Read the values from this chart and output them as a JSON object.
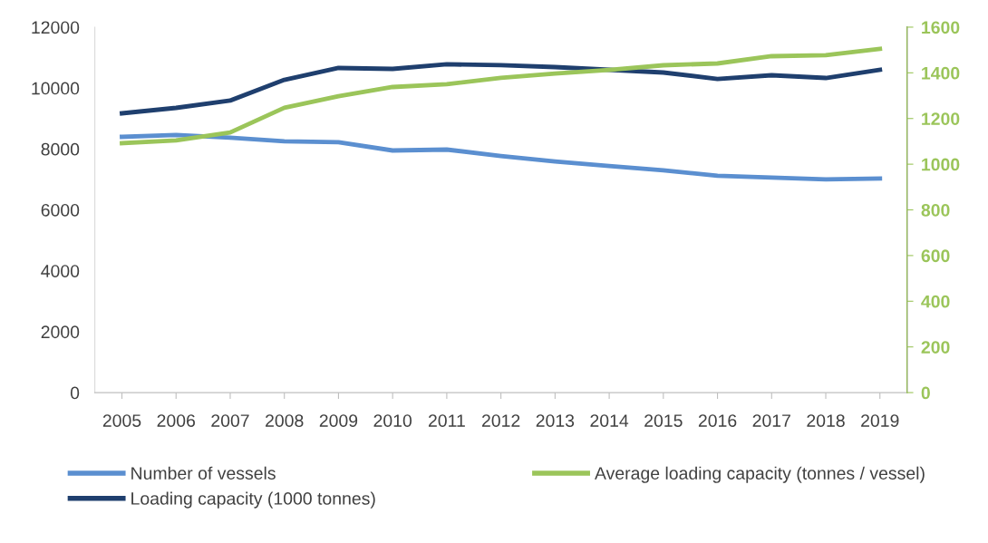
{
  "chart_data": {
    "type": "line",
    "categories": [
      "2005",
      "2006",
      "2007",
      "2008",
      "2009",
      "2010",
      "2011",
      "2012",
      "2013",
      "2014",
      "2015",
      "2016",
      "2017",
      "2018",
      "2019"
    ],
    "series": [
      {
        "name": "Number of vessels",
        "color": "#5b8fd0",
        "values": [
          8400,
          8460,
          8370,
          8250,
          8220,
          7950,
          7980,
          7770,
          7590,
          7440,
          7300,
          7120,
          7060,
          7000,
          7030
        ]
      },
      {
        "name": "Loading capacity (1000 tonnes)",
        "color": "#1f3f6e",
        "values": [
          9170,
          9350,
          9590,
          10270,
          10660,
          10630,
          10780,
          10750,
          10690,
          10600,
          10510,
          10300,
          10420,
          10330,
          10600
        ]
      },
      {
        "name": "Average loading capacity (tonnes / vessel)",
        "color": "#9bc55a",
        "axis": "y2",
        "values": [
          1092,
          1104,
          1139,
          1247,
          1298,
          1338,
          1350,
          1378,
          1397,
          1413,
          1433,
          1441,
          1473,
          1477,
          1505
        ]
      }
    ],
    "ylim": [
      0,
      12000
    ],
    "yticks": [
      0,
      2000,
      4000,
      6000,
      8000,
      10000,
      12000
    ],
    "y2lim": [
      0,
      1600
    ],
    "y2ticks": [
      0,
      200,
      400,
      600,
      800,
      1000,
      1200,
      1400,
      1600
    ],
    "grid": false,
    "legend": "bottom",
    "line_style": "solid",
    "marker": "none"
  }
}
